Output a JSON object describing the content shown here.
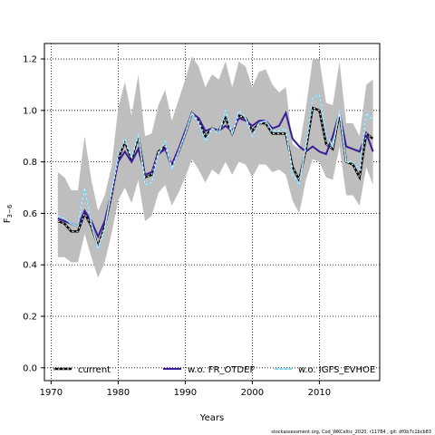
{
  "chart_data": {
    "type": "line",
    "title": "",
    "xlabel": "Years",
    "ylabel": "F3-6",
    "xlim": [
      1969,
      2019
    ],
    "ylim": [
      -0.05,
      1.26
    ],
    "xticks": [
      1970,
      1980,
      1990,
      2000,
      2010
    ],
    "yticks": [
      0.0,
      0.2,
      0.4,
      0.6,
      0.8,
      1.0,
      1.2
    ],
    "grid": true,
    "legend_position": "bottom",
    "x": [
      1971,
      1972,
      1973,
      1974,
      1975,
      1976,
      1977,
      1978,
      1979,
      1980,
      1981,
      1982,
      1983,
      1984,
      1985,
      1986,
      1987,
      1988,
      1989,
      1990,
      1991,
      1992,
      1993,
      1994,
      1995,
      1996,
      1997,
      1998,
      1999,
      2000,
      2001,
      2002,
      2003,
      2004,
      2005,
      2006,
      2007,
      2008,
      2009,
      2010,
      2011,
      2012,
      2013,
      2014,
      2015,
      2016,
      2017,
      2018
    ],
    "band_upper": [
      0.76,
      0.74,
      0.69,
      0.69,
      0.9,
      0.73,
      0.61,
      0.67,
      0.78,
      1.01,
      1.11,
      0.98,
      1.14,
      0.9,
      0.91,
      1.02,
      1.08,
      0.96,
      1.04,
      1.12,
      1.21,
      1.17,
      1.09,
      1.14,
      1.12,
      1.19,
      1.09,
      1.19,
      1.17,
      1.09,
      1.15,
      1.16,
      1.1,
      1.07,
      1.09,
      0.87,
      0.85,
      1.01,
      1.2,
      1.2,
      1.03,
      1.02,
      1.19,
      0.95,
      0.95,
      0.9,
      1.1,
      1.12
    ],
    "band_lower": [
      0.43,
      0.43,
      0.41,
      0.41,
      0.52,
      0.43,
      0.35,
      0.41,
      0.52,
      0.65,
      0.7,
      0.64,
      0.73,
      0.57,
      0.59,
      0.68,
      0.71,
      0.63,
      0.68,
      0.74,
      0.81,
      0.77,
      0.72,
      0.77,
      0.75,
      0.8,
      0.75,
      0.8,
      0.79,
      0.74,
      0.79,
      0.79,
      0.76,
      0.77,
      0.75,
      0.65,
      0.6,
      0.73,
      0.81,
      0.8,
      0.74,
      0.73,
      0.86,
      0.67,
      0.67,
      0.63,
      0.78,
      0.71
    ],
    "series": [
      {
        "name": "current",
        "color": "#000000",
        "dash": true,
        "values": [
          0.57,
          0.56,
          0.53,
          0.53,
          0.6,
          0.55,
          0.47,
          0.55,
          0.67,
          0.81,
          0.88,
          0.81,
          0.9,
          0.74,
          0.75,
          0.84,
          0.86,
          0.78,
          0.84,
          0.91,
          0.99,
          0.96,
          0.9,
          0.93,
          0.92,
          0.97,
          0.91,
          0.98,
          0.97,
          0.92,
          0.95,
          0.95,
          0.91,
          0.91,
          0.91,
          0.78,
          0.73,
          0.85,
          1.01,
          1.0,
          0.87,
          0.85,
          0.99,
          0.8,
          0.79,
          0.74,
          0.91,
          0.89
        ]
      },
      {
        "name": "w.o. FR_OTDEF",
        "color": "#3a1d96",
        "dash": false,
        "values": [
          0.58,
          0.57,
          0.56,
          0.55,
          0.61,
          0.57,
          0.51,
          0.57,
          0.68,
          0.8,
          0.84,
          0.8,
          0.85,
          0.75,
          0.76,
          0.83,
          0.85,
          0.79,
          0.85,
          0.92,
          0.99,
          0.97,
          0.92,
          0.93,
          0.92,
          0.94,
          0.92,
          0.97,
          0.96,
          0.94,
          0.96,
          0.96,
          0.93,
          0.94,
          0.99,
          0.89,
          0.86,
          0.84,
          0.86,
          0.84,
          0.83,
          0.9,
          0.99,
          0.86,
          0.85,
          0.84,
          0.91,
          0.84
        ]
      },
      {
        "name": "w.o. IGFS_EVHOE",
        "color": "#87ceeb",
        "dash": false,
        "values": [
          0.59,
          0.58,
          0.56,
          0.55,
          0.7,
          0.56,
          0.46,
          0.54,
          0.69,
          0.83,
          0.89,
          0.82,
          0.91,
          0.71,
          0.72,
          0.83,
          0.88,
          0.77,
          0.84,
          0.91,
          0.99,
          0.95,
          0.88,
          0.93,
          0.91,
          1.0,
          0.91,
          1.0,
          0.97,
          0.9,
          0.95,
          0.96,
          0.92,
          0.92,
          0.93,
          0.75,
          0.71,
          0.87,
          1.05,
          1.06,
          0.91,
          0.86,
          1.0,
          0.8,
          0.8,
          0.77,
          0.99,
          0.96
        ]
      }
    ]
  },
  "labels": {
    "xlabel": "Years",
    "ylabel_main": "F",
    "ylabel_sub": "3−6",
    "footer": "stockassessment.org, Cod_WKCeltic_2020, r11784 , git: df0b7c1bcb83"
  },
  "colors": {
    "band": "#bebebe",
    "grid": "#000000",
    "frame": "#000000"
  }
}
